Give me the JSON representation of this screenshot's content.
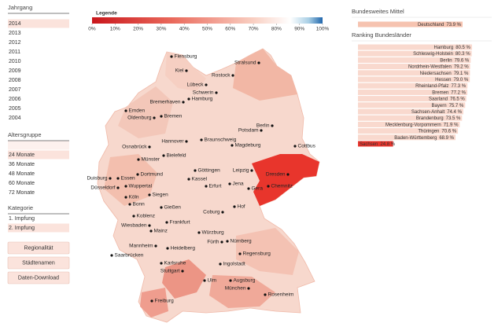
{
  "sidebar": {
    "jahrgang": {
      "title": "Jahrgang",
      "items": [
        "2014",
        "2013",
        "2012",
        "2011",
        "2010",
        "2009",
        "2008",
        "2007",
        "2006",
        "2005",
        "2004"
      ],
      "selected": 0
    },
    "altersgruppe": {
      "title": "Altersgruppe",
      "items": [
        "24 Monate",
        "36 Monate",
        "48 Monate",
        "60 Monate",
        "72 Monate"
      ],
      "selected": 0,
      "disabled_from": 1
    },
    "kategorie": {
      "title": "Kategorie",
      "items": [
        "1. Impfung",
        "2. Impfung"
      ],
      "selected": 1
    },
    "buttons": [
      "Regionalität",
      "Städtenamen",
      "Daten-Download"
    ]
  },
  "legend": {
    "title": "Legende",
    "ticks": [
      {
        "value": 0,
        "label": "0%"
      },
      {
        "value": 10,
        "label": "10%"
      },
      {
        "value": 20,
        "label": "20%"
      },
      {
        "value": 30,
        "label": "30%"
      },
      {
        "value": 40,
        "label": "40%"
      },
      {
        "value": 50,
        "label": "50%"
      },
      {
        "value": 60,
        "label": "60%"
      },
      {
        "value": 70,
        "label": "70%"
      },
      {
        "value": 80,
        "label": "80%"
      },
      {
        "value": 90,
        "label": "90%"
      },
      {
        "value": 100,
        "label": "100%"
      }
    ]
  },
  "map": {
    "cities": [
      "Flensburg",
      "Kiel",
      "Stralsund",
      "Lübeck",
      "Rostock",
      "Schwerin",
      "Hamburg",
      "Bremerhaven",
      "Emden",
      "Oldenburg",
      "Bremen",
      "Berlin",
      "Potsdam",
      "Hannover",
      "Braunschweig",
      "Magdeburg",
      "Osnabrück",
      "Bielefeld",
      "Münster",
      "Cottbus",
      "Göttingen",
      "Kassel",
      "Leipzig",
      "Dresden",
      "Jena",
      "Gera",
      "Chemnitz",
      "Erfurt",
      "Hof",
      "Coburg",
      "Dortmund",
      "Essen",
      "Duisburg",
      "Wuppertal",
      "Düsseldorf",
      "Köln",
      "Bonn",
      "Siegen",
      "Gießen",
      "Koblenz",
      "Wiesbaden",
      "Frankfurt",
      "Mainz",
      "Würzburg",
      "Mannheim",
      "Heidelberg",
      "Fürth",
      "Nürnberg",
      "Saarbrücken",
      "Karlsruhe",
      "Regensburg",
      "Stuttgart",
      "Ingolstadt",
      "Ulm",
      "Augsburg",
      "München",
      "Rosenheim",
      "Freiburg"
    ]
  },
  "panel": {
    "mittel": {
      "title": "Bundesweites Mittel",
      "name": "Deutschland",
      "value": 73.9,
      "value_label": "73.9 %",
      "color": "#f6c3b0"
    },
    "ranking": {
      "title": "Ranking Bundesländer",
      "color": "#f9d9ce",
      "highlight_color": "#e8342c",
      "highlight": 15,
      "items": [
        {
          "name": "Hamburg",
          "value": 80.5,
          "value_label": "80.5 %"
        },
        {
          "name": "Schleswig-Holstein",
          "value": 80.3,
          "value_label": "80.3 %"
        },
        {
          "name": "Berlin",
          "value": 79.6,
          "value_label": "79.6 %"
        },
        {
          "name": "Nordrhein-Westfalen",
          "value": 79.2,
          "value_label": "79.2 %"
        },
        {
          "name": "Niedersachsen",
          "value": 79.1,
          "value_label": "79.1 %"
        },
        {
          "name": "Hessen",
          "value": 79.0,
          "value_label": "79.0 %"
        },
        {
          "name": "Rheinland-Pfalz",
          "value": 77.3,
          "value_label": "77.3 %"
        },
        {
          "name": "Bremen",
          "value": 77.2,
          "value_label": "77.2 %"
        },
        {
          "name": "Saarland",
          "value": 76.5,
          "value_label": "76.5 %"
        },
        {
          "name": "Bayern",
          "value": 75.7,
          "value_label": "75.7 %"
        },
        {
          "name": "Sachsen-Anhalt",
          "value": 74.4,
          "value_label": "74.4 %"
        },
        {
          "name": "Brandenburg",
          "value": 73.5,
          "value_label": "73.5 %"
        },
        {
          "name": "Mecklenburg-Vorpommern",
          "value": 71.9,
          "value_label": "71.9 %"
        },
        {
          "name": "Thüringen",
          "value": 70.6,
          "value_label": "70.6 %"
        },
        {
          "name": "Baden-Württemberg",
          "value": 68.9,
          "value_label": "68.9 %"
        },
        {
          "name": "Sachsen",
          "value": 24.8,
          "value_label": "24.8 %"
        }
      ]
    }
  }
}
